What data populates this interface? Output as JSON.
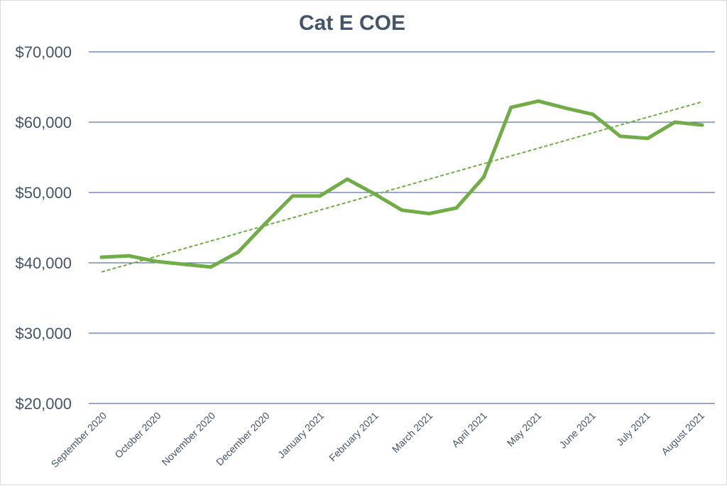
{
  "chart_data": {
    "type": "line",
    "title": "Cat E COE",
    "xlabel": "",
    "ylabel": "",
    "ylim": [
      20000,
      70000
    ],
    "yticks": [
      20000,
      30000,
      40000,
      50000,
      60000,
      70000
    ],
    "ytick_labels": [
      "$20,000",
      "$30,000",
      "$40,000",
      "$50,000",
      "$60,000",
      "$70,000"
    ],
    "grid": true,
    "legend": "none",
    "x_tick_labels": [
      "September 2020",
      "October 2020",
      "November 2020",
      "December 2020",
      "January 2021",
      "February 2021",
      "March 2021",
      "April 2021",
      "May 2021",
      "June 2021",
      "July 2021",
      "August 2021"
    ],
    "x": [
      "September 2020",
      "September 2020 (2nd)",
      "October 2020",
      "October 2020 (2nd)",
      "November 2020",
      "November 2020 (2nd)",
      "December 2020",
      "December 2020 (2nd)",
      "January 2021",
      "January 2021 (2nd)",
      "February 2021",
      "February 2021 (2nd)",
      "March 2021",
      "March 2021 (2nd)",
      "April 2021",
      "April 2021 (2nd)",
      "May 2021",
      "May 2021 (2nd)",
      "June 2021",
      "June 2021 (2nd)",
      "July 2021",
      "July 2021 (2nd)",
      "August 2021"
    ],
    "series": [
      {
        "values": [
          40800,
          41000,
          40200,
          39800,
          39400,
          41500,
          45600,
          49500,
          49500,
          51900,
          49800,
          47500,
          47000,
          47800,
          52200,
          62100,
          63000,
          62000,
          61100,
          58000,
          57700,
          60000,
          59600
        ],
        "color": "#70ad47"
      }
    ],
    "trendline": {
      "type": "linear",
      "start": 38700,
      "end": 62900,
      "color": "#70ad47",
      "style": "dashed"
    }
  }
}
